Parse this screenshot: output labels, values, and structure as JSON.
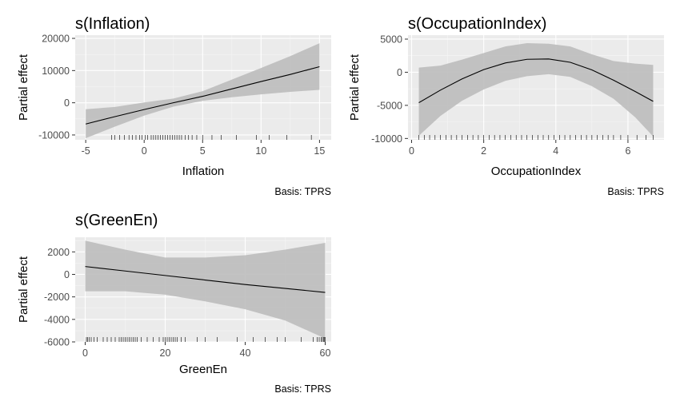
{
  "figure": {
    "caption_text": "Basis: TPRS"
  },
  "chart_data": [
    {
      "type": "line",
      "title": "s(Inflation)",
      "xlabel": "Inflation",
      "ylabel": "Partial effect",
      "caption": "Basis: TPRS",
      "xlim": [
        -5.9,
        16.0
      ],
      "ylim": [
        -11500,
        21000
      ],
      "xticks": [
        -5,
        0,
        5,
        10,
        15
      ],
      "yticks": [
        -10000,
        0,
        10000,
        20000
      ],
      "xtick_labels": [
        "-5",
        "0",
        "5",
        "10",
        "15"
      ],
      "ytick_labels": [
        "-10000",
        "0",
        "10000",
        "20000"
      ],
      "x": [
        -5,
        -2.5,
        0,
        2.5,
        5,
        7.5,
        10,
        12.5,
        15
      ],
      "fit": [
        -6600,
        -4300,
        -2100,
        0,
        2000,
        4300,
        6600,
        8800,
        11200
      ],
      "lower": [
        -11000,
        -7400,
        -4000,
        -1200,
        600,
        1700,
        2600,
        3400,
        4000
      ],
      "upper": [
        -2000,
        -1300,
        100,
        1300,
        3600,
        7200,
        10800,
        14500,
        18500
      ],
      "rug": [
        -2.8,
        -2.5,
        -2.1,
        -1.7,
        -1.3,
        -1.0,
        -0.7,
        -0.4,
        -0.2,
        0.1,
        0.3,
        0.6,
        0.8,
        1.0,
        1.2,
        1.4,
        1.6,
        1.8,
        2.0,
        2.2,
        2.4,
        2.6,
        2.8,
        3.0,
        3.2,
        3.5,
        3.8,
        4.1,
        4.5,
        5.0,
        5.8,
        6.6,
        7.9,
        9.6,
        10.7,
        12.2,
        14.3
      ]
    },
    {
      "type": "line",
      "title": "s(OccupationIndex)",
      "xlabel": "OccupationIndex",
      "ylabel": "Partial effect",
      "caption": "Basis: TPRS",
      "xlim": [
        -0.1,
        7.0
      ],
      "ylim": [
        -10200,
        5600
      ],
      "xticks": [
        0,
        2,
        4,
        6
      ],
      "yticks": [
        -10000,
        -5000,
        0,
        5000
      ],
      "xtick_labels": [
        "0",
        "2",
        "4",
        "6"
      ],
      "ytick_labels": [
        "-10000",
        "-5000",
        "0",
        "5000"
      ],
      "x": [
        0.2,
        0.8,
        1.4,
        2.0,
        2.6,
        3.2,
        3.8,
        4.4,
        5.0,
        5.6,
        6.2,
        6.7
      ],
      "fit": [
        -4600,
        -2700,
        -1000,
        400,
        1400,
        1950,
        2000,
        1500,
        350,
        -1200,
        -2900,
        -4400
      ],
      "lower": [
        -9600,
        -6600,
        -4300,
        -2600,
        -1300,
        -600,
        -300,
        -700,
        -2100,
        -4000,
        -6800,
        -9700
      ],
      "upper": [
        700,
        1000,
        1900,
        2900,
        3900,
        4400,
        4300,
        3900,
        2700,
        1700,
        1300,
        1100
      ],
      "rug": [
        0.2,
        0.35,
        0.5,
        0.65,
        0.8,
        0.95,
        1.1,
        1.25,
        1.4,
        1.55,
        1.7,
        1.85,
        2.0,
        2.15,
        2.3,
        2.45,
        2.6,
        2.75,
        2.9,
        3.05,
        3.2,
        3.35,
        3.5,
        3.65,
        3.8,
        3.95,
        4.1,
        4.25,
        4.4,
        4.55,
        4.7,
        4.85,
        5.0,
        5.15,
        5.3,
        5.45,
        5.6,
        5.8,
        6.0,
        6.25,
        6.5,
        6.7
      ]
    },
    {
      "type": "line",
      "title": "s(GreenEn)",
      "xlabel": "GreenEn",
      "ylabel": "Partial effect",
      "caption": "Basis: TPRS",
      "xlim": [
        -2.5,
        61.5
      ],
      "ylim": [
        -6000,
        3300
      ],
      "xticks": [
        0,
        20,
        40,
        60
      ],
      "yticks": [
        -6000,
        -4000,
        -2000,
        0,
        2000
      ],
      "xtick_labels": [
        "0",
        "20",
        "40",
        "60"
      ],
      "ytick_labels": [
        "-6000",
        "-4000",
        "-2000",
        "0",
        "2000"
      ],
      "x": [
        0,
        10,
        20,
        30,
        40,
        50,
        60
      ],
      "fit": [
        700,
        300,
        -100,
        -500,
        -900,
        -1250,
        -1600
      ],
      "lower": [
        -1500,
        -1500,
        -1800,
        -2400,
        -3100,
        -4100,
        -5700
      ],
      "upper": [
        3000,
        2200,
        1500,
        1500,
        1700,
        2200,
        2800
      ],
      "rug": [
        0.3,
        0.6,
        1.0,
        1.5,
        2.2,
        3.0,
        4.5,
        5.5,
        6.5,
        7.5,
        8.5,
        9.0,
        9.5,
        10.0,
        10.5,
        11.0,
        11.5,
        12.0,
        12.5,
        13.0,
        14.0,
        15.5,
        17.0,
        18.5,
        19.5,
        20.0,
        20.5,
        21.0,
        21.5,
        22.0,
        22.5,
        23.0,
        24.0,
        25.0,
        28.0,
        30.0,
        33.0,
        38.0,
        42.0,
        45.0,
        48.0,
        50.0,
        54.0,
        57.0,
        58.0,
        58.5,
        59.0,
        59.3,
        59.6,
        59.8,
        60.0
      ]
    }
  ]
}
